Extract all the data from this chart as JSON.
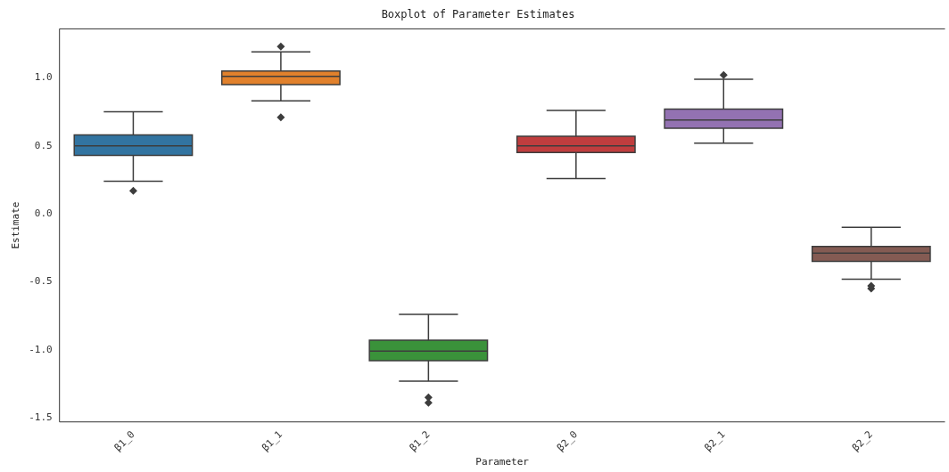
{
  "chart_data": {
    "type": "box",
    "title": "Boxplot of Parameter Estimates",
    "xlabel": "Parameter",
    "ylabel": "Estimate",
    "categories": [
      "β1_0",
      "β1_1",
      "β1_2",
      "β2_0",
      "β2_1",
      "β2_2"
    ],
    "colors": [
      "#3274a1",
      "#e1812c",
      "#3a923a",
      "#c03d3e",
      "#9372b2",
      "#845b53"
    ],
    "boxes": [
      {
        "low": 0.24,
        "q1": 0.43,
        "median": 0.5,
        "q3": 0.58,
        "high": 0.75,
        "outliers": [
          0.17
        ]
      },
      {
        "low": 0.83,
        "q1": 0.95,
        "median": 1.01,
        "q3": 1.05,
        "high": 1.19,
        "outliers": [
          1.23,
          0.71
        ]
      },
      {
        "low": -1.23,
        "q1": -1.08,
        "median": -1.01,
        "q3": -0.93,
        "high": -0.74,
        "outliers": [
          -1.35,
          -1.39
        ]
      },
      {
        "low": 0.26,
        "q1": 0.45,
        "median": 0.5,
        "q3": 0.57,
        "high": 0.76
      },
      {
        "low": 0.52,
        "q1": 0.63,
        "median": 0.69,
        "q3": 0.77,
        "high": 0.99,
        "outliers": [
          1.02
        ]
      },
      {
        "low": -0.48,
        "q1": -0.35,
        "median": -0.29,
        "q3": -0.24,
        "high": -0.1,
        "outliers": [
          -0.53,
          -0.55
        ]
      }
    ],
    "ylim": [
      -1.53,
      1.36
    ],
    "yticks": [
      -1.5,
      {
        "value": -1,
        "label": "-1.0"
      },
      -0.5,
      {
        "value": 0,
        "label": "0.0"
      },
      0.5,
      {
        "value": 1,
        "label": "1.0"
      }
    ],
    "grid": false,
    "legend": false,
    "marker": "diamond"
  }
}
